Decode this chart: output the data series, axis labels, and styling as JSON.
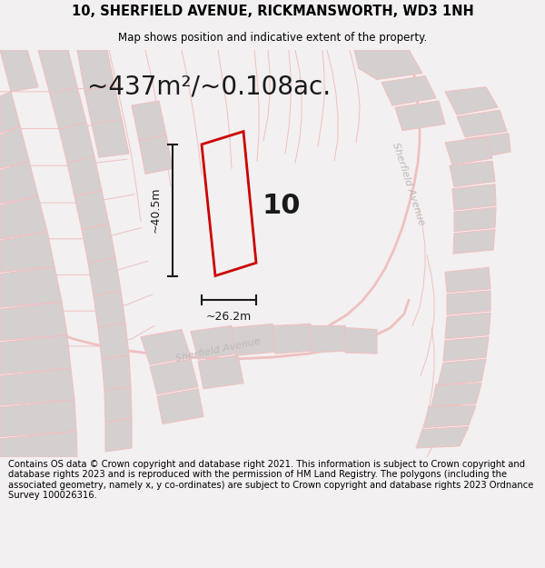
{
  "title_line1": "10, SHERFIELD AVENUE, RICKMANSWORTH, WD3 1NH",
  "title_line2": "Map shows position and indicative extent of the property.",
  "area_label": "~437m²/~0.108ac.",
  "width_label": "~26.2m",
  "height_label": "~40.5m",
  "property_number": "10",
  "footer_text": "Contains OS data © Crown copyright and database right 2021. This information is subject to Crown copyright and database rights 2023 and is reproduced with the permission of HM Land Registry. The polygons (including the associated geometry, namely x, y co-ordinates) are subject to Crown copyright and database rights 2023 Ordnance Survey 100026316.",
  "bg_color": "#f2f0f0",
  "map_bg_color": "#f2f0f0",
  "road_color": "#f0c0c0",
  "building_color": "#d4d0d0",
  "red_outline_color": "#cc0000",
  "annotation_color": "#1a1a1a",
  "street_label_color": "#c0b8b8",
  "title_fontsize": 10.5,
  "subtitle_fontsize": 8.5,
  "area_fontsize": 20,
  "annotation_fontsize": 9,
  "footer_fontsize": 7.2
}
